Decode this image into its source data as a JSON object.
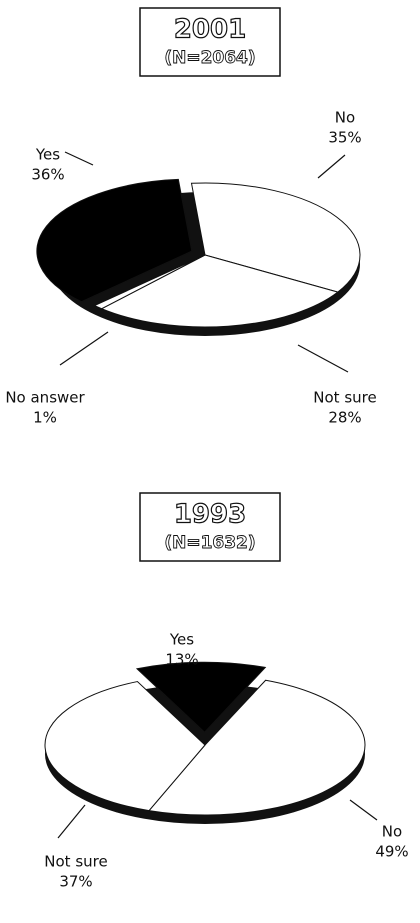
{
  "chart_data": [
    {
      "type": "pie",
      "title": "2001",
      "subtitle": "(N=2064)",
      "categories": [
        "No",
        "Not sure",
        "No answer",
        "Yes"
      ],
      "values": [
        35,
        28,
        1,
        36
      ],
      "value_labels": [
        "35%",
        "28%",
        "1%",
        "36%"
      ],
      "colors": [
        "#ffffff",
        "#ffffff",
        "#ffffff",
        "#000000"
      ]
    },
    {
      "type": "pie",
      "title": "1993",
      "subtitle": "(N=1632)",
      "categories": [
        "Yes",
        "No",
        "Not sure"
      ],
      "values": [
        13,
        49,
        37
      ],
      "value_labels": [
        "13%",
        "49%",
        "37%"
      ],
      "colors": [
        "#000000",
        "#ffffff",
        "#ffffff"
      ]
    }
  ]
}
